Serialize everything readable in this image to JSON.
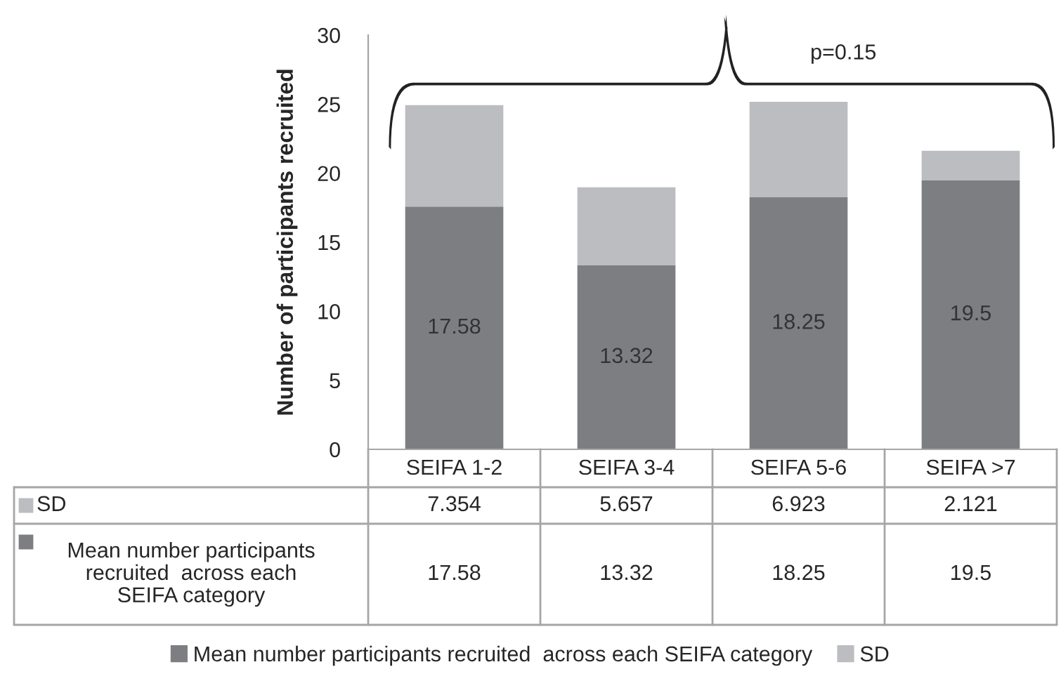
{
  "chart_data": {
    "type": "bar",
    "stacked": true,
    "ylabel": "Number of participants recruited",
    "categories": [
      "SEIFA 1-2",
      "SEIFA 3-4",
      "SEIFA 5-6",
      "SEIFA >7"
    ],
    "series": [
      {
        "name": "Mean number participants recruited  across each SEIFA category",
        "color": "#7d7e82",
        "values": [
          17.58,
          13.32,
          18.25,
          19.5
        ],
        "value_labels": [
          "17.58",
          "13.32",
          "18.25",
          "19.5"
        ]
      },
      {
        "name": "SD",
        "color": "#bcbdc0",
        "values": [
          7.354,
          5.657,
          6.923,
          2.121
        ]
      }
    ],
    "ylim": [
      0,
      30
    ],
    "yticks": [
      0,
      5,
      10,
      15,
      20,
      25,
      30
    ],
    "grid": false,
    "legend": "bottom",
    "data_labels": true,
    "annotations": [
      "p=0.15"
    ]
  }
}
